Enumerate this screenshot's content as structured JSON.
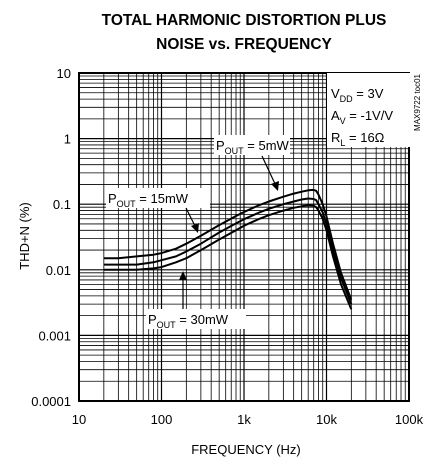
{
  "chart_data": {
    "type": "line",
    "title": [
      "TOTAL HARMONIC DISTORTION PLUS",
      "NOISE vs. FREQUENCY"
    ],
    "xlabel": "FREQUENCY (Hz)",
    "ylabel": "THD+N (%)",
    "xscale": "log",
    "yscale": "log",
    "xlim": [
      10,
      100000
    ],
    "ylim": [
      0.0001,
      10
    ],
    "grid": true,
    "x_ticks": [
      10,
      100,
      1000,
      10000,
      100000
    ],
    "x_tick_labels": [
      "10",
      "100",
      "1k",
      "10k",
      "100k"
    ],
    "y_ticks": [
      10,
      1,
      0.1,
      0.01,
      0.001,
      0.0001
    ],
    "y_tick_labels": [
      "10",
      "1",
      "0.1",
      "0.01",
      "0.001",
      "0.0001"
    ],
    "conditions": [
      {
        "name": "V",
        "sub": "DD",
        "value": " = 3V"
      },
      {
        "name": "A",
        "sub": "V",
        "value": " = -1V/V"
      },
      {
        "name": "R",
        "sub": "L",
        "value": " = 16Ω"
      }
    ],
    "figure_code": "MAX9722 toc01",
    "series": [
      {
        "label_main": "P",
        "label_sub": "OUT",
        "label_value": " = 5mW",
        "x": [
          20,
          30,
          50,
          80,
          100,
          150,
          200,
          300,
          500,
          800,
          1000,
          1500,
          2000,
          3000,
          4000,
          5000,
          6000,
          7000,
          7500,
          8000,
          9000,
          10000,
          12000,
          15000,
          20000
        ],
        "y": [
          0.015,
          0.015,
          0.016,
          0.017,
          0.018,
          0.021,
          0.025,
          0.033,
          0.048,
          0.066,
          0.076,
          0.096,
          0.11,
          0.13,
          0.145,
          0.155,
          0.163,
          0.165,
          0.16,
          0.14,
          0.1,
          0.065,
          0.025,
          0.009,
          0.0035
        ]
      },
      {
        "label_main": "P",
        "label_sub": "OUT",
        "label_value": " = 15mW",
        "x": [
          20,
          30,
          50,
          80,
          100,
          150,
          200,
          300,
          500,
          800,
          1000,
          1500,
          2000,
          3000,
          4000,
          5000,
          6000,
          7000,
          7500,
          8000,
          9000,
          10000,
          12000,
          15000,
          20000
        ],
        "y": [
          0.012,
          0.012,
          0.012,
          0.013,
          0.014,
          0.016,
          0.019,
          0.025,
          0.037,
          0.051,
          0.059,
          0.074,
          0.085,
          0.1,
          0.11,
          0.118,
          0.122,
          0.12,
          0.115,
          0.1,
          0.075,
          0.05,
          0.02,
          0.0075,
          0.003
        ]
      },
      {
        "label_main": "P",
        "label_sub": "OUT",
        "label_value": " = 30mW",
        "x": [
          20,
          30,
          50,
          80,
          100,
          150,
          200,
          300,
          500,
          800,
          1000,
          1500,
          2000,
          3000,
          4000,
          5000,
          6000,
          7000,
          7500,
          8000,
          9000,
          10000,
          12000,
          15000,
          20000
        ],
        "y": [
          0.01,
          0.01,
          0.01,
          0.0105,
          0.011,
          0.013,
          0.015,
          0.02,
          0.029,
          0.04,
          0.047,
          0.059,
          0.068,
          0.08,
          0.088,
          0.093,
          0.096,
          0.095,
          0.09,
          0.08,
          0.06,
          0.04,
          0.016,
          0.006,
          0.0025
        ]
      }
    ]
  }
}
